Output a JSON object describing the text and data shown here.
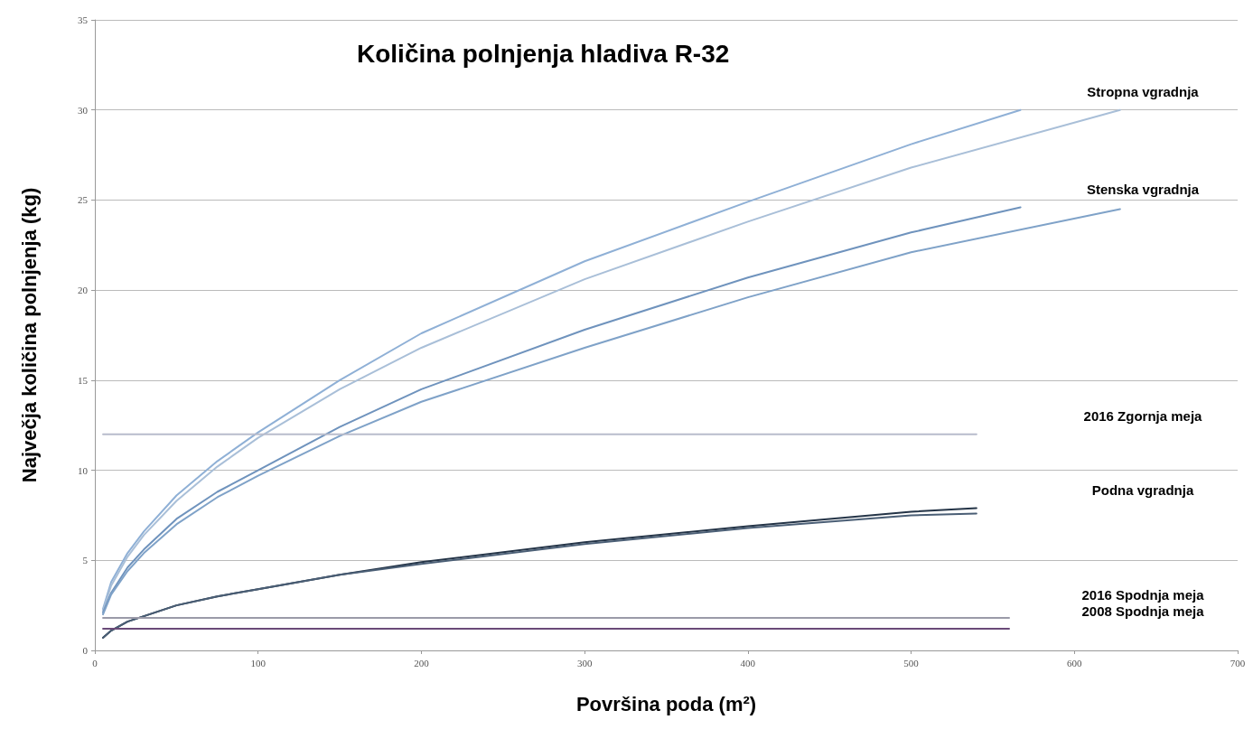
{
  "chart_data": {
    "type": "line",
    "title": "Količina polnjenja hladiva R-32",
    "xlabel": "Površina poda (m²)",
    "ylabel": "Največja količina polnjenja (kg)",
    "xlim": [
      0,
      700
    ],
    "xticks": [
      0,
      100,
      200,
      300,
      400,
      500,
      600,
      700
    ],
    "ylim": [
      0,
      35
    ],
    "yticks": [
      0,
      5,
      10,
      15,
      20,
      25,
      30,
      35
    ],
    "grid": "y",
    "marker": "none",
    "line_style": "solid",
    "legend": false,
    "series": [
      {
        "name": "Stropna vgradnja",
        "color": "#8fb0d6",
        "x": [
          5,
          10,
          20,
          30,
          50,
          75,
          100,
          150,
          200,
          300,
          400,
          500,
          567
        ],
        "values": [
          2.3,
          3.8,
          5.4,
          6.6,
          8.6,
          10.5,
          12.1,
          15.0,
          17.6,
          21.6,
          24.9,
          28.1,
          30
        ]
      },
      {
        "color": "#a9bfd8",
        "x": [
          5,
          10,
          20,
          30,
          50,
          75,
          100,
          150,
          200,
          300,
          400,
          500,
          628
        ],
        "values": [
          2.2,
          3.6,
          5.2,
          6.4,
          8.3,
          10.2,
          11.8,
          14.5,
          16.8,
          20.6,
          23.8,
          26.8,
          30
        ]
      },
      {
        "name": "Stenska vgradnja",
        "color": "#6f93bd",
        "x": [
          5,
          10,
          20,
          30,
          50,
          75,
          100,
          150,
          200,
          300,
          400,
          500,
          567
        ],
        "values": [
          2.1,
          3.2,
          4.6,
          5.6,
          7.3,
          8.8,
          10.0,
          12.4,
          14.5,
          17.8,
          20.7,
          23.2,
          24.6
        ]
      },
      {
        "color": "#7fa2c8",
        "x": [
          5,
          10,
          20,
          30,
          50,
          75,
          100,
          150,
          200,
          300,
          400,
          500,
          628
        ],
        "values": [
          2.0,
          3.1,
          4.4,
          5.4,
          7.0,
          8.5,
          9.7,
          11.9,
          13.8,
          16.8,
          19.6,
          22.1,
          24.5
        ]
      },
      {
        "name": "2016 Zgornja meja",
        "color": "#b8bccc",
        "x": [
          5,
          540
        ],
        "values": [
          12,
          12
        ]
      },
      {
        "name": "Podna vgradnja",
        "color": "#243447",
        "x": [
          5,
          10,
          20,
          30,
          50,
          75,
          100,
          150,
          200,
          300,
          400,
          500,
          540
        ],
        "values": [
          0.7,
          1.1,
          1.6,
          1.9,
          2.5,
          3.0,
          3.4,
          4.2,
          4.9,
          6.0,
          6.9,
          7.7,
          7.9
        ]
      },
      {
        "color": "#4a5e75",
        "x": [
          5,
          10,
          20,
          30,
          50,
          75,
          100,
          150,
          200,
          300,
          400,
          500,
          540
        ],
        "values": [
          0.7,
          1.1,
          1.6,
          1.9,
          2.5,
          3.0,
          3.4,
          4.2,
          4.8,
          5.9,
          6.8,
          7.5,
          7.6
        ]
      },
      {
        "name": "2016 Spodnja meja",
        "color": "#9a9aa8",
        "x": [
          5,
          560
        ],
        "values": [
          1.8,
          1.8
        ]
      },
      {
        "name": "2008 Spodnja meja",
        "color": "#6a4a78",
        "x": [
          5,
          560
        ],
        "values": [
          1.2,
          1.2
        ]
      }
    ]
  }
}
